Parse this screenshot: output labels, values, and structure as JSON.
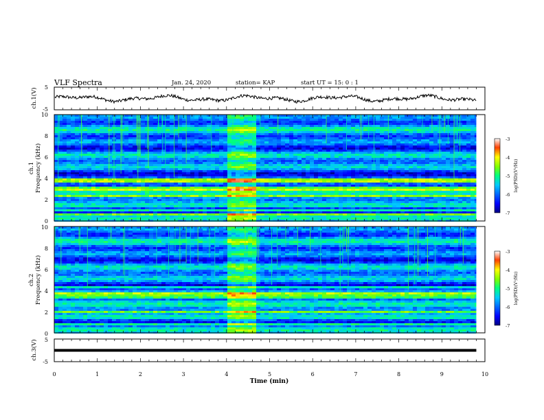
{
  "header": {
    "title": "VLF Spectra",
    "date": "Jan. 24, 2020",
    "station": "station= KAP",
    "start": "start  UT =   15: 0  : 1"
  },
  "chart_data": [
    {
      "type": "line",
      "ylabel": "ch.1(V)",
      "ylim": [
        -5,
        5
      ],
      "yticks": [
        "5",
        "-5"
      ],
      "xlim": [
        0,
        10
      ],
      "trace": {
        "mean": 0,
        "amplitude": 1.6,
        "x_end": 9.8
      }
    },
    {
      "type": "heatmap",
      "ylabel_top": "ch.1",
      "ylabel": "Frequency  (kHz)",
      "ylim": [
        0,
        10
      ],
      "yticks": [
        "0",
        "2",
        "4",
        "6",
        "8",
        "10"
      ],
      "xlim": [
        0,
        10
      ],
      "data_end_min": 9.8,
      "burst_window_min": [
        4.0,
        4.6
      ],
      "strong_lines_khz": [
        3.0,
        3.8,
        2.3,
        1.0,
        0.6
      ],
      "colorbar": {
        "label": "log(PSD)(V²/Hz)",
        "ticks": [
          "-3",
          "-4",
          "-5",
          "-6",
          "-7"
        ],
        "range": [
          -7,
          -3
        ]
      }
    },
    {
      "type": "heatmap",
      "ylabel_top": "ch.2",
      "ylabel": "Frequency  (kHz)",
      "ylim": [
        0,
        10
      ],
      "yticks": [
        "0",
        "2",
        "4",
        "6",
        "8",
        "10"
      ],
      "xlim": [
        0,
        10
      ],
      "data_end_min": 9.8,
      "burst_window_min": [
        4.0,
        4.6
      ],
      "strong_lines_khz": [
        3.4,
        3.7,
        2.0,
        4.3,
        0.8
      ],
      "colorbar": {
        "label": "log(PSD)(V²/Hz)",
        "ticks": [
          "-3",
          "-4",
          "-5",
          "-6",
          "-7"
        ],
        "range": [
          -7,
          -3
        ]
      }
    },
    {
      "type": "line",
      "ylabel": "ch.3(V)",
      "ylim": [
        -5,
        5
      ],
      "yticks": [
        "5",
        "-5"
      ],
      "xlim": [
        0,
        10
      ],
      "xlabel": "Time  (min)",
      "xticks": [
        "0",
        "1",
        "2",
        "3",
        "4",
        "5",
        "6",
        "7",
        "8",
        "9",
        "10"
      ],
      "trace": {
        "value": 0,
        "x_end": 9.8
      }
    }
  ]
}
